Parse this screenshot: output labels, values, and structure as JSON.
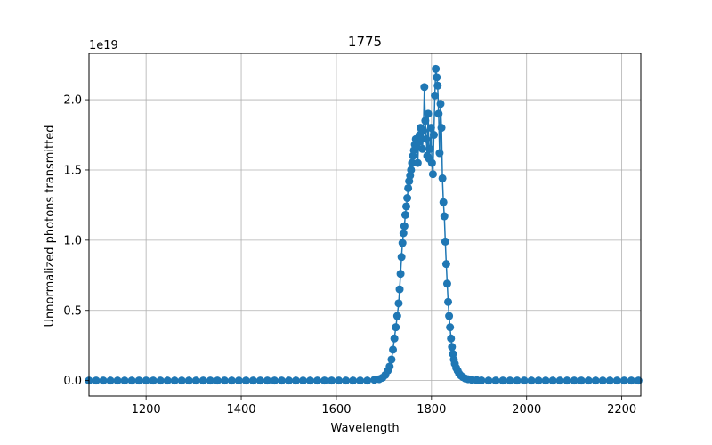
{
  "chart_data": {
    "type": "line",
    "title": "1775",
    "xlabel": "Wavelength",
    "ylabel": "Unnormalized photons transmitted",
    "y_scale_label": "1e19",
    "xlim": [
      1080,
      2240
    ],
    "ylim": [
      -0.11,
      2.33
    ],
    "x_ticks": [
      1200,
      1400,
      1600,
      1800,
      2000,
      2200
    ],
    "y_ticks": [
      0.0,
      0.5,
      1.0,
      1.5,
      2.0
    ],
    "y_tick_labels": [
      "0.0",
      "0.5",
      "1.0",
      "1.5",
      "2.0"
    ],
    "grid": true,
    "color": "#1f77b4",
    "series": [
      {
        "x": [
          1080,
          1095,
          1110,
          1125,
          1140,
          1155,
          1170,
          1185,
          1200,
          1215,
          1230,
          1245,
          1260,
          1275,
          1290,
          1305,
          1320,
          1335,
          1350,
          1365,
          1380,
          1395,
          1410,
          1425,
          1440,
          1455,
          1470,
          1485,
          1500,
          1515,
          1530,
          1545,
          1560,
          1575,
          1590,
          1605,
          1620,
          1635,
          1650,
          1665,
          1680,
          1690,
          1697,
          1703,
          1708,
          1712,
          1716,
          1719,
          1722,
          1725,
          1728,
          1731,
          1733,
          1735,
          1737,
          1739,
          1741,
          1743,
          1745,
          1747,
          1749,
          1751,
          1753,
          1755,
          1757,
          1759,
          1761,
          1763,
          1765,
          1767,
          1769,
          1771,
          1773,
          1775,
          1777,
          1779,
          1781,
          1783,
          1785,
          1787,
          1789,
          1791,
          1793,
          1795,
          1797,
          1799,
          1801,
          1803,
          1805,
          1807,
          1809,
          1811,
          1813,
          1815,
          1817,
          1819,
          1821,
          1823,
          1825,
          1827,
          1829,
          1831,
          1833,
          1835,
          1837,
          1839,
          1841,
          1843,
          1845,
          1847,
          1849,
          1852,
          1855,
          1858,
          1862,
          1866,
          1871,
          1877,
          1885,
          1895,
          1905,
          1920,
          1935,
          1950,
          1965,
          1980,
          1995,
          2010,
          2025,
          2040,
          2055,
          2070,
          2085,
          2100,
          2115,
          2130,
          2145,
          2160,
          2175,
          2190,
          2205,
          2220,
          2235
        ],
        "y": [
          0,
          0,
          0,
          0,
          0,
          0,
          0,
          0,
          0,
          0,
          0,
          0,
          0,
          0,
          0,
          0,
          0,
          0,
          0,
          0,
          0,
          0,
          0,
          0,
          0,
          0,
          0,
          0,
          0,
          0,
          0,
          0,
          0,
          0,
          0,
          0,
          0,
          0,
          0,
          0,
          0.005,
          0.01,
          0.02,
          0.04,
          0.07,
          0.1,
          0.15,
          0.22,
          0.3,
          0.38,
          0.46,
          0.55,
          0.65,
          0.76,
          0.88,
          0.98,
          1.05,
          1.1,
          1.18,
          1.24,
          1.3,
          1.37,
          1.42,
          1.46,
          1.5,
          1.55,
          1.6,
          1.64,
          1.68,
          1.72,
          1.66,
          1.55,
          1.7,
          1.75,
          1.8,
          1.72,
          1.65,
          1.78,
          2.09,
          1.85,
          1.72,
          1.6,
          1.9,
          1.58,
          1.65,
          1.8,
          1.55,
          1.47,
          1.75,
          2.03,
          2.22,
          2.16,
          2.1,
          1.9,
          1.62,
          1.97,
          1.8,
          1.44,
          1.27,
          1.17,
          0.99,
          0.83,
          0.69,
          0.56,
          0.46,
          0.38,
          0.3,
          0.24,
          0.19,
          0.15,
          0.12,
          0.09,
          0.07,
          0.05,
          0.035,
          0.025,
          0.015,
          0.01,
          0.005,
          0.003,
          0.001,
          0,
          0,
          0,
          0,
          0,
          0,
          0,
          0,
          0,
          0,
          0,
          0,
          0,
          0,
          0,
          0,
          0,
          0,
          0,
          0,
          0,
          0
        ]
      }
    ]
  }
}
